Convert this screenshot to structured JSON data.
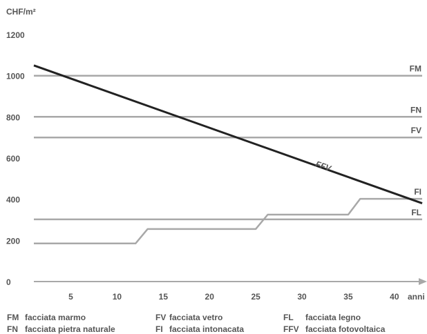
{
  "chart_data": {
    "type": "line",
    "title": "",
    "ylabel": "CHF/m²",
    "xlabel": "anni",
    "xlim": [
      1,
      43
    ],
    "ylim": [
      0,
      1200
    ],
    "x_ticks": [
      5,
      10,
      15,
      20,
      25,
      30,
      35,
      40
    ],
    "y_ticks": [
      0,
      200,
      400,
      600,
      800,
      1000,
      1200
    ],
    "grid": false,
    "colors": {
      "gray": "#a8a8a8",
      "dark": "#222222",
      "text": "#555555"
    },
    "series": [
      {
        "name": "FM",
        "color": "#a8a8a8",
        "points": [
          [
            1,
            1000
          ],
          [
            43,
            1000
          ]
        ]
      },
      {
        "name": "FN",
        "color": "#a8a8a8",
        "points": [
          [
            1,
            800
          ],
          [
            43,
            800
          ]
        ]
      },
      {
        "name": "FV",
        "color": "#a8a8a8",
        "points": [
          [
            1,
            700
          ],
          [
            43,
            700
          ]
        ]
      },
      {
        "name": "FI",
        "color": "#a8a8a8",
        "points": [
          [
            1,
            185
          ],
          [
            12,
            185
          ],
          [
            13.3,
            255
          ],
          [
            25,
            255
          ],
          [
            26.3,
            325
          ],
          [
            35,
            325
          ],
          [
            36.3,
            402
          ],
          [
            43,
            402
          ]
        ]
      },
      {
        "name": "FL",
        "color": "#a8a8a8",
        "points": [
          [
            1,
            302
          ],
          [
            43,
            302
          ]
        ]
      },
      {
        "name": "FFV",
        "color": "#222222",
        "points": [
          [
            1,
            1050
          ],
          [
            43,
            380
          ]
        ]
      }
    ],
    "annotations": [
      {
        "text": "FM",
        "x": 43,
        "y": 1000
      },
      {
        "text": "FN",
        "x": 43,
        "y": 800
      },
      {
        "text": "FV",
        "x": 43,
        "y": 700
      },
      {
        "text": "FI",
        "x": 43,
        "y": 402
      },
      {
        "text": "FL",
        "x": 43,
        "y": 302
      },
      {
        "text": "FFV",
        "x": 32.2,
        "y": 548
      }
    ]
  },
  "legend": [
    {
      "code": "FM",
      "label": "facciata marmo"
    },
    {
      "code": "FN",
      "label": "facciata pietra naturale"
    },
    {
      "code": "FV",
      "label": "facciata vetro"
    },
    {
      "code": "FI",
      "label": "facciata intonacata"
    },
    {
      "code": "FL",
      "label": "facciata legno"
    },
    {
      "code": "FFV",
      "label": "facciata fotovoltaica"
    }
  ]
}
